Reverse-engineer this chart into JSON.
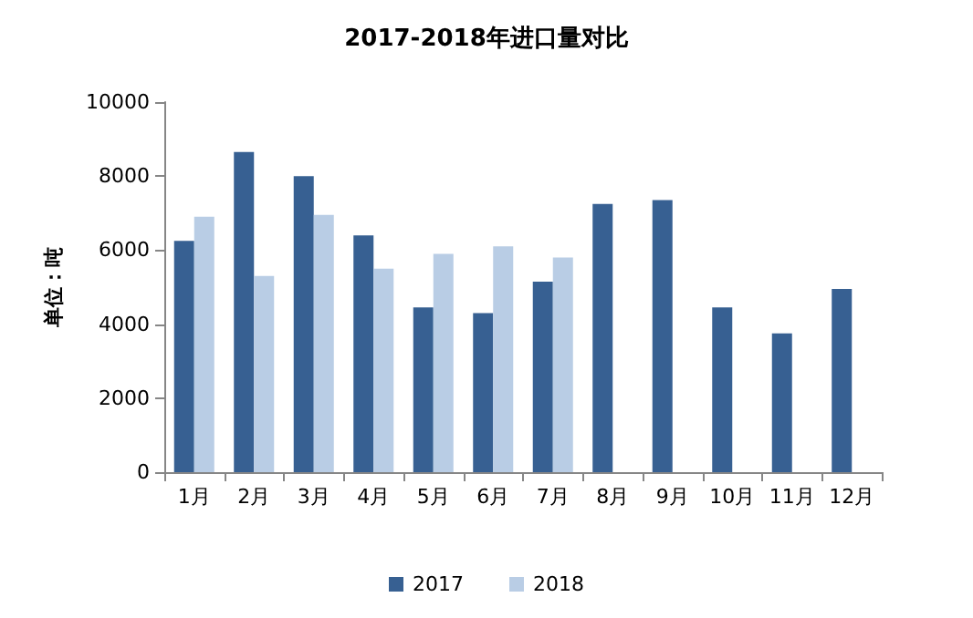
{
  "chart_data": {
    "type": "bar",
    "title": "2017-2018年进口量对比",
    "ylabel": "单位：吨",
    "categories": [
      "1月",
      "2月",
      "3月",
      "4月",
      "5月",
      "6月",
      "7月",
      "8月",
      "9月",
      "10月",
      "11月",
      "12月"
    ],
    "series": [
      {
        "name": "2017",
        "color": "#376092",
        "values": [
          6250,
          8650,
          8000,
          6400,
          4450,
          4300,
          5150,
          7250,
          7350,
          4450,
          3750,
          4950
        ]
      },
      {
        "name": "2018",
        "color": "#b9cde5",
        "values": [
          6900,
          5300,
          6950,
          5500,
          5900,
          6100,
          5800,
          null,
          null,
          null,
          null,
          null
        ]
      }
    ],
    "ylim": [
      0,
      10000
    ],
    "yticks": [
      0,
      2000,
      4000,
      6000,
      8000,
      10000
    ],
    "grid": false,
    "legend": "bottom"
  }
}
